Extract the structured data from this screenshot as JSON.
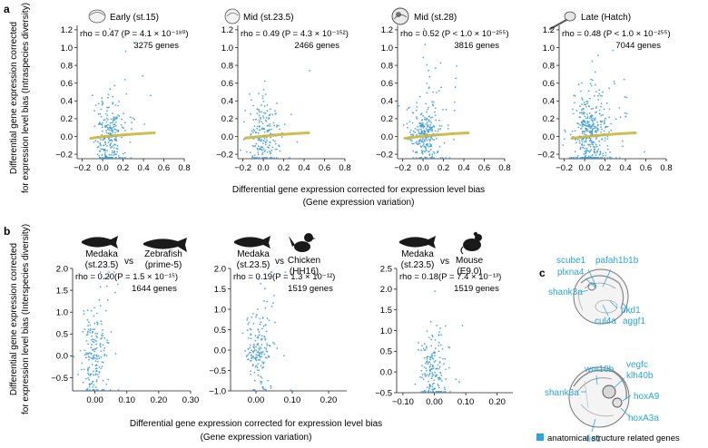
{
  "panel_labels": {
    "a": "a",
    "b": "b",
    "c": "c"
  },
  "panel_a": {
    "ylabel_line1": "Differential gene expression corrected",
    "ylabel_line2": "for expression level bias (Intraspecies diversity)",
    "xlabel_line1": "Differential gene expression corrected for expression level bias",
    "xlabel_line2": "(Gene expression variation)"
  },
  "panel_b": {
    "ylabel_line1": "Differential gene expression corrected",
    "ylabel_line2": "for expression level bias (Interspecies diversity)",
    "xlabel_line1": "Differential gene expression corrected for expression level bias",
    "xlabel_line2": "(Gene expression variation)",
    "vs": "vs",
    "headers": [
      {
        "left": "Medaka",
        "left_sub": "(st.23.5)",
        "right": "Zebrafish",
        "right_sub": "(prime-5)"
      },
      {
        "left": "Medaka",
        "left_sub": "(st.23.5)",
        "right": "Chicken",
        "right_sub": "(HH16)"
      },
      {
        "left": "Medaka",
        "left_sub": "(st.23.5)",
        "right": "Mouse",
        "right_sub": "(E9.0)"
      }
    ]
  },
  "panel_c": {
    "top_labels": [
      "scube1",
      "pafah1b1b",
      "plxna4",
      "shank3a",
      "pkd1",
      "cul4a",
      "aggf1"
    ],
    "bottom_labels": [
      "wnt10b",
      "vegfc",
      "klh40b",
      "shank3a",
      "hoxA9",
      "hoxA3a",
      "tie1"
    ],
    "legend": "anatomical structure related genes",
    "label_color": "#29a6df"
  },
  "colors": {
    "points": "#3a9ad9",
    "density": "#c9b73b"
  },
  "chart_data": [
    {
      "type": "scatter",
      "title": "Early (st.15)",
      "annotation": "rho = 0.47 (P = 4.1 × 10⁻¹⁸⁰)",
      "genes": "3275 genes",
      "xlim": [
        -0.25,
        0.8
      ],
      "ylim": [
        -0.25,
        1.25
      ],
      "xticks": [
        "−0.2",
        "0.0",
        "0.2",
        "0.4",
        "0.6",
        "0.8"
      ],
      "yticks": [
        "−0.2",
        "0.0",
        "0.2",
        "0.4",
        "0.6",
        "0.8",
        "1.0",
        "1.2"
      ]
    },
    {
      "type": "scatter",
      "title": "Mid (st.23.5)",
      "annotation": "rho = 0.49 (P = 4.3 × 10⁻¹⁵²)",
      "genes": "2466 genes",
      "xlim": [
        -0.25,
        0.8
      ],
      "ylim": [
        -0.25,
        1.25
      ],
      "xticks": [
        "−0.2",
        "0.0",
        "0.2",
        "0.4",
        "0.6",
        "0.8"
      ],
      "yticks": [
        "−0.2",
        "0.0",
        "0.2",
        "0.4",
        "0.6",
        "0.8",
        "1.0",
        "1.2"
      ]
    },
    {
      "type": "scatter",
      "title": "Mid (st.28)",
      "annotation": "rho = 0.52 (P < 1.0 × 10⁻²⁵⁵)",
      "genes": "3816 genes",
      "xlim": [
        -0.25,
        0.8
      ],
      "ylim": [
        -0.25,
        1.25
      ],
      "xticks": [
        "−0.2",
        "0.0",
        "0.2",
        "0.4",
        "0.6",
        "0.8"
      ],
      "yticks": [
        "−0.2",
        "0.0",
        "0.2",
        "0.4",
        "0.6",
        "0.8",
        "1.0",
        "1.2"
      ]
    },
    {
      "type": "scatter",
      "title": "Late (Hatch)",
      "annotation": "rho = 0.48 (P < 1.0 × 10⁻²⁵⁵)",
      "genes": "7044 genes",
      "xlim": [
        -0.25,
        0.8
      ],
      "ylim": [
        -0.25,
        1.25
      ],
      "xticks": [
        "−0.2",
        "0.0",
        "0.2",
        "0.4",
        "0.6",
        "0.8"
      ],
      "yticks": [
        "−0.2",
        "0.0",
        "0.2",
        "0.4",
        "0.6",
        "0.8",
        "1.0",
        "1.2"
      ]
    },
    {
      "type": "scatter",
      "title": "Medaka vs Zebrafish",
      "annotation": "rho = 0.20(P = 1.5 × 10⁻¹⁵)",
      "genes": "1644 genes",
      "xlim": [
        -0.07,
        0.3
      ],
      "ylim": [
        -0.8,
        2.0
      ],
      "xticks": [
        "0.00",
        "0.10",
        "0.20",
        "0.30"
      ],
      "yticks": [
        "−0.5",
        "0.0",
        "0.5",
        "1.0",
        "1.5",
        "2.0"
      ]
    },
    {
      "type": "scatter",
      "title": "Medaka vs Chicken",
      "annotation": "rho = 0.19(P = 1.3 × 10⁻¹²)",
      "genes": "1519 genes",
      "xlim": [
        -0.07,
        0.25
      ],
      "ylim": [
        -1.0,
        2.0
      ],
      "xticks": [
        "0.00",
        "0.10",
        "0.20"
      ],
      "yticks": [
        "−1.0",
        "−0.5",
        "0.0",
        "0.5",
        "1.0",
        "1.5",
        "2.0"
      ]
    },
    {
      "type": "scatter",
      "title": "Medaka vs Mouse",
      "annotation": "rho = 0.18(P = 7.4 × 10⁻¹³)",
      "genes": "1519 genes",
      "xlim": [
        -0.12,
        0.25
      ],
      "ylim": [
        -0.5,
        2.5
      ],
      "xticks": [
        "−0.10",
        "0.00",
        "0.10",
        "0.20"
      ],
      "yticks": [
        "−0.5",
        "0.0",
        "0.5",
        "1.0",
        "1.5",
        "2.0",
        "2.5"
      ]
    }
  ]
}
